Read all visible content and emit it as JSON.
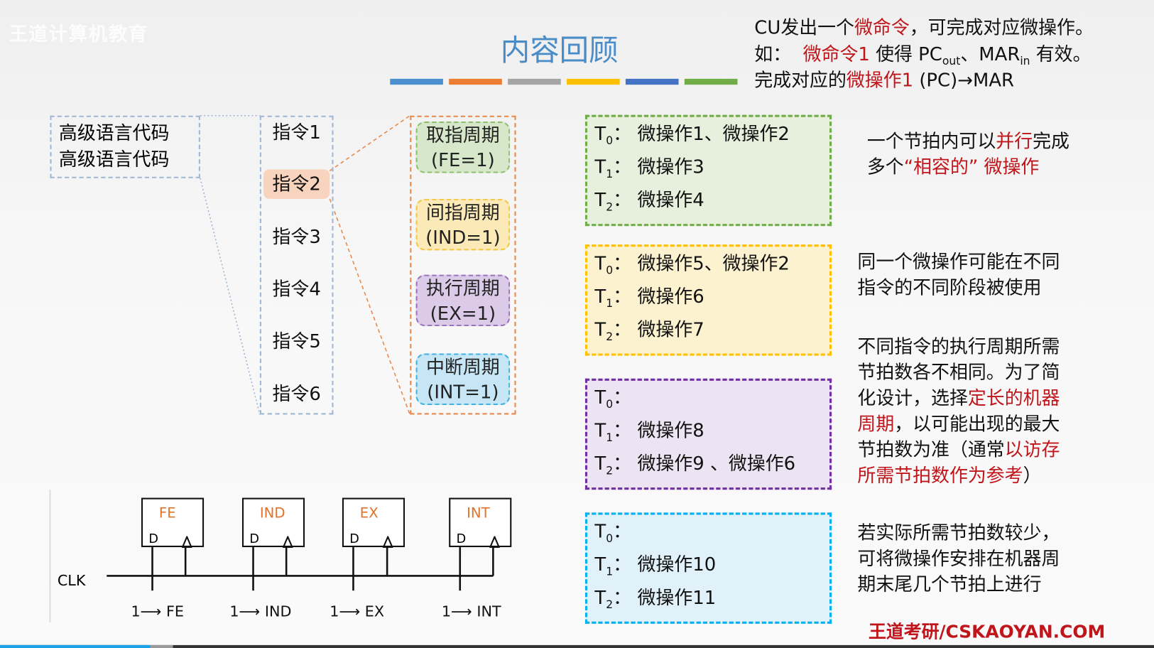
{
  "watermark": "王道计算机教育",
  "title": "内容回顾",
  "color_bars": [
    "#4a8fd0",
    "#ed7d31",
    "#a5a5a5",
    "#ffc000",
    "#4472c4",
    "#70ad47"
  ],
  "top_note": {
    "l1a": "CU发出一个",
    "l1b": "微命令",
    "l1c": "，可完成对应微操作。",
    "l2a": "如：",
    "l2b": "微命令1",
    "l2c": " 使得 PC",
    "l2d": "out",
    "l2e": "、MAR",
    "l2f": "in",
    "l2g": " 有效。",
    "l3a": "完成对应的",
    "l3b": "微操作1",
    "l3c": " (PC)→MAR"
  },
  "code_box": [
    "高级语言代码",
    "高级语言代码"
  ],
  "instructions": [
    "指令1",
    "指令2",
    "指令3",
    "指令4",
    "指令5",
    "指令6"
  ],
  "cycles": [
    {
      "name": "取指周期",
      "flag": "(FE=1)",
      "bg": "#d6e8c9",
      "border": "#8fbf6c"
    },
    {
      "name": "间指周期",
      "flag": "(IND=1)",
      "bg": "#fbeab7",
      "border": "#f2c744"
    },
    {
      "name": "执行周期",
      "flag": "(EX=1)",
      "bg": "#dccbe8",
      "border": "#9a72bd"
    },
    {
      "name": "中断周期",
      "flag": "(INT=1)",
      "bg": "#c6e6f5",
      "border": "#3fb2e2"
    }
  ],
  "timing_boxes": [
    {
      "rows": [
        [
          "0",
          "微操作1、微操作2"
        ],
        [
          "1",
          "微操作3"
        ],
        [
          "2",
          "微操作4"
        ]
      ],
      "bg": "#e6f0dd",
      "border": "#70ad47"
    },
    {
      "rows": [
        [
          "0",
          "微操作5、微操作2"
        ],
        [
          "1",
          "微操作6"
        ],
        [
          "2",
          "微操作7"
        ]
      ],
      "bg": "#fdf2cf",
      "border": "#ffc000"
    },
    {
      "rows": [
        [
          "0",
          ""
        ],
        [
          "1",
          "微操作8"
        ],
        [
          "2",
          "微操作9 、微操作6"
        ]
      ],
      "bg": "#ece4f2",
      "border": "#7030a0"
    },
    {
      "rows": [
        [
          "0",
          ""
        ],
        [
          "1",
          "微操作10"
        ],
        [
          "2",
          "微操作11"
        ]
      ],
      "bg": "#e0f1f9",
      "border": "#00b0f0"
    }
  ],
  "notes": {
    "n1a": "一个节拍内可以",
    "n1b": "并行",
    "n1c": "完成",
    "n1d": "多个",
    "n1e": "“相容的”",
    "n1f": " 微操作",
    "n2a": "同一个微操作可能在不同",
    "n2b": "指令的不同阶段被使用",
    "n3a": "不同指令的执行周期所需",
    "n3b": "节拍数各不相同。为了简",
    "n3c": "化设计，选择",
    "n3d": "定长的机器",
    "n3e": "周期",
    "n3f": "，以可能出现的最大",
    "n3g": "节拍数为准（通常",
    "n3h": "以访存",
    "n3i": "所需节拍数作为参考",
    "n3j": "）",
    "n4a": "若实际所需节拍数较少，",
    "n4b": "可将微操作安排在机器周",
    "n4c": "期末尾几个节拍上进行"
  },
  "circuit": {
    "clk": "CLK",
    "d": "D",
    "flipflops": [
      "FE",
      "IND",
      "EX",
      "INT"
    ],
    "inputs": [
      "1⟶ FE",
      "1⟶ IND",
      "1⟶ EX",
      "1⟶ INT"
    ]
  },
  "brand": "王道考研/CSKAOYAN.COM",
  "video_progress": {
    "played_fraction": 0.13,
    "buffered_fraction": 0.15
  }
}
